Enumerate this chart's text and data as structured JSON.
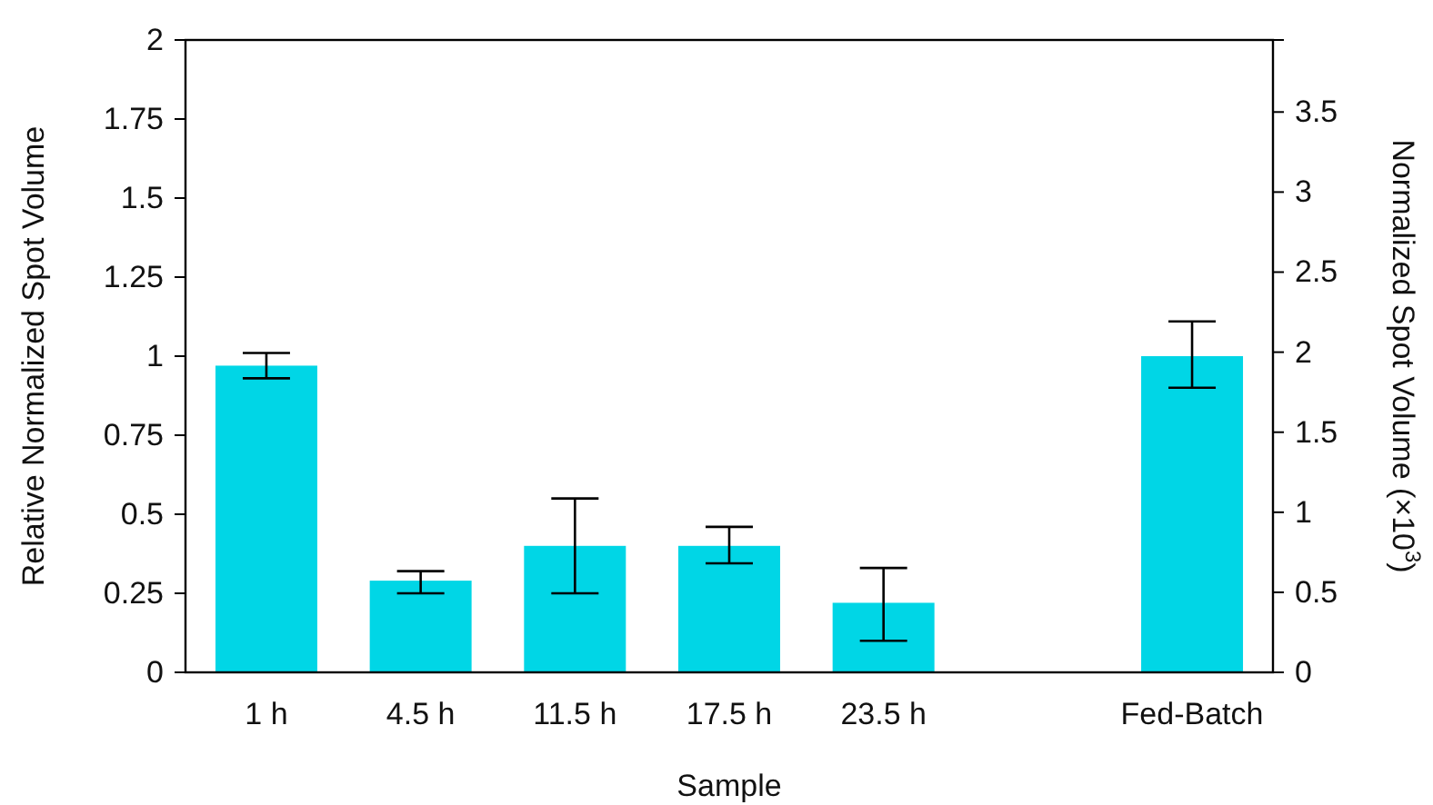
{
  "chart_data": {
    "type": "bar",
    "xlabel": "Sample",
    "ylabel": "Relative Normalized Spot Volume",
    "y2label": "Normalized Spot Volume (×10$^{3}$)",
    "categories": [
      "1 h",
      "4.5 h",
      "11.5 h",
      "17.5 h",
      "23.5 h",
      null,
      "Fed-Batch"
    ],
    "series": [
      {
        "color": "#00d6e6",
        "values": [
          0.97,
          0.29,
          0.4,
          0.4,
          0.22,
          null,
          1.0
        ],
        "errors": [
          [
            0.93,
            1.01
          ],
          [
            0.25,
            0.32
          ],
          [
            0.25,
            0.55
          ],
          [
            0.345,
            0.46
          ],
          [
            0.1,
            0.33
          ],
          null,
          [
            0.9,
            1.11
          ]
        ]
      }
    ],
    "ylim": [
      0,
      2
    ],
    "yticks": [
      0,
      0.25,
      0.5,
      0.75,
      1,
      1.25,
      1.5,
      1.75,
      2
    ],
    "y2lim": [
      0,
      3.95
    ],
    "y2ticks": [
      0,
      0.5,
      1,
      1.5,
      2,
      2.5,
      3,
      3.5
    ]
  }
}
